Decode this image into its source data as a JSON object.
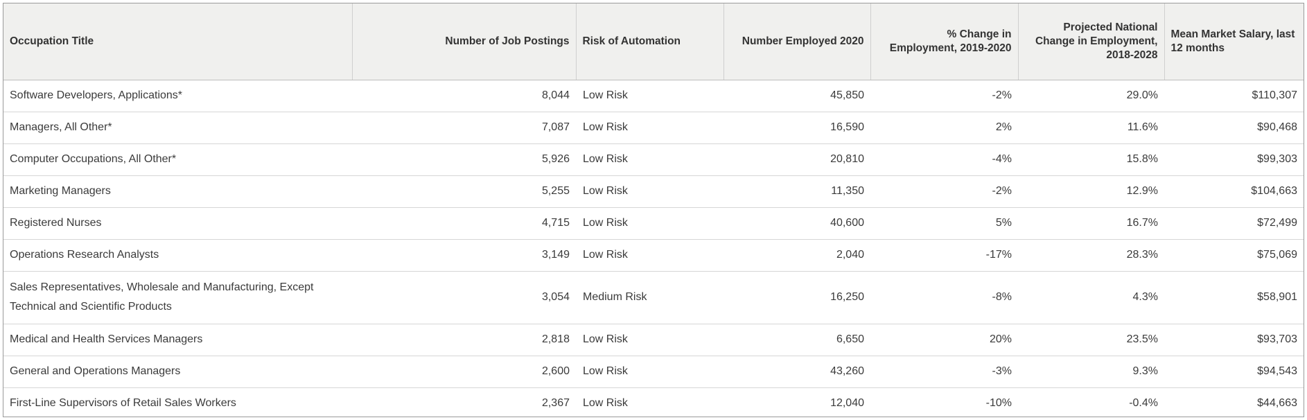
{
  "table": {
    "headers": [
      "Occupation Title",
      "Number of Job Postings",
      "Risk of Automation",
      "Number Employed 2020",
      "% Change in Employment, 2019-2020",
      "Projected National Change in Employment, 2018-2028",
      "Mean Market Salary, last 12 months"
    ],
    "rows": [
      [
        "Software Developers, Applications*",
        "8,044",
        "Low Risk",
        "45,850",
        "-2%",
        "29.0%",
        "$110,307"
      ],
      [
        "Managers, All Other*",
        "7,087",
        "Low Risk",
        "16,590",
        "2%",
        "11.6%",
        "$90,468"
      ],
      [
        "Computer Occupations, All Other*",
        "5,926",
        "Low Risk",
        "20,810",
        "-4%",
        "15.8%",
        "$99,303"
      ],
      [
        "Marketing Managers",
        "5,255",
        "Low Risk",
        "11,350",
        "-2%",
        "12.9%",
        "$104,663"
      ],
      [
        "Registered Nurses",
        "4,715",
        "Low Risk",
        "40,600",
        "5%",
        "16.7%",
        "$72,499"
      ],
      [
        "Operations Research Analysts",
        "3,149",
        "Low Risk",
        "2,040",
        "-17%",
        "28.3%",
        "$75,069"
      ],
      [
        "Sales Representatives, Wholesale and Manufacturing, Except Technical and Scientific Products",
        "3,054",
        "Medium Risk",
        "16,250",
        "-8%",
        "4.3%",
        "$58,901"
      ],
      [
        "Medical and Health Services Managers",
        "2,818",
        "Low Risk",
        "6,650",
        "20%",
        "23.5%",
        "$93,703"
      ],
      [
        "General and Operations Managers",
        "2,600",
        "Low Risk",
        "43,260",
        "-3%",
        "9.3%",
        "$94,543"
      ],
      [
        "First-Line Supervisors of Retail Sales Workers",
        "2,367",
        "Low Risk",
        "12,040",
        "-10%",
        "-0.4%",
        "$44,663"
      ]
    ]
  }
}
